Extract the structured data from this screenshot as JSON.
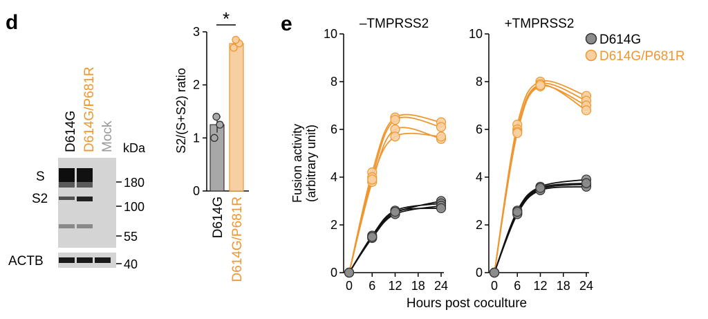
{
  "panels": {
    "d_label": "d",
    "e_label": "e"
  },
  "blot": {
    "lanes": [
      "D614G",
      "D614G/P681R",
      "Mock"
    ],
    "lane_colors": [
      "#000000",
      "#f0962f",
      "#999999"
    ],
    "unit_label": "kDa",
    "band_labels": [
      "S",
      "S2",
      "ACTB"
    ],
    "markers": [
      "180",
      "100",
      "55",
      "40"
    ]
  },
  "colors": {
    "d614g": "#333333",
    "d614g_fill": "#a8a8a8",
    "p681r": "#f0962f",
    "p681r_fill": "#f8cfa0"
  },
  "chart_data": [
    {
      "type": "bar",
      "categories": [
        "D614G",
        "D614G/P681R"
      ],
      "values": [
        1.25,
        2.78
      ],
      "errors": [
        0.15,
        0.08
      ],
      "points": [
        [
          1.0,
          1.25,
          1.4
        ],
        [
          2.7,
          2.78,
          2.85
        ]
      ],
      "ylabel": "S2/(S+S2) ratio",
      "ylim": [
        0,
        3
      ],
      "yticks": [
        "0",
        "1",
        "2",
        "3"
      ],
      "significance": "*",
      "category_colors": [
        "#333333",
        "#f0962f"
      ]
    },
    {
      "type": "line",
      "title": "–TMPRSS2",
      "x": [
        0,
        6,
        12,
        24
      ],
      "xticks": [
        "0",
        "6",
        "12",
        "18",
        "24"
      ],
      "yticks": [
        "0",
        "2",
        "4",
        "6",
        "8",
        "10"
      ],
      "ylim": [
        0,
        10
      ],
      "xlim": [
        0,
        24
      ],
      "ylabel": "Fusion activity (arbitrary unit)",
      "series": [
        {
          "name": "D614G",
          "replicates": [
            [
              0,
              1.5,
              2.5,
              3.0
            ],
            [
              0,
              1.55,
              2.6,
              2.9
            ],
            [
              0,
              1.45,
              2.45,
              2.8
            ],
            [
              0,
              1.5,
              2.55,
              2.7
            ]
          ]
        },
        {
          "name": "D614G/P681R",
          "replicates": [
            [
              0,
              4.2,
              6.5,
              6.3
            ],
            [
              0,
              4.0,
              6.4,
              6.1
            ],
            [
              0,
              3.8,
              6.0,
              5.6
            ],
            [
              0,
              3.9,
              5.7,
              5.7
            ]
          ]
        }
      ]
    },
    {
      "type": "line",
      "title": "+TMPRSS2",
      "x": [
        0,
        6,
        12,
        24
      ],
      "xticks": [
        "0",
        "6",
        "12",
        "18",
        "24"
      ],
      "yticks": [
        "0",
        "2",
        "4",
        "6",
        "8",
        "10"
      ],
      "ylim": [
        0,
        10
      ],
      "xlim": [
        0,
        24
      ],
      "xlabel": "Hours post coculture",
      "legend": "top-right",
      "series": [
        {
          "name": "D614G",
          "replicates": [
            [
              0,
              2.6,
              3.6,
              3.9
            ],
            [
              0,
              2.5,
              3.5,
              3.7
            ],
            [
              0,
              2.45,
              3.45,
              3.6
            ],
            [
              0,
              2.55,
              3.55,
              3.75
            ]
          ]
        },
        {
          "name": "D614G/P681R",
          "replicates": [
            [
              0,
              6.2,
              8.0,
              7.4
            ],
            [
              0,
              6.0,
              7.9,
              7.2
            ],
            [
              0,
              5.9,
              7.8,
              7.0
            ],
            [
              0,
              5.85,
              7.85,
              6.8
            ]
          ]
        }
      ]
    }
  ]
}
